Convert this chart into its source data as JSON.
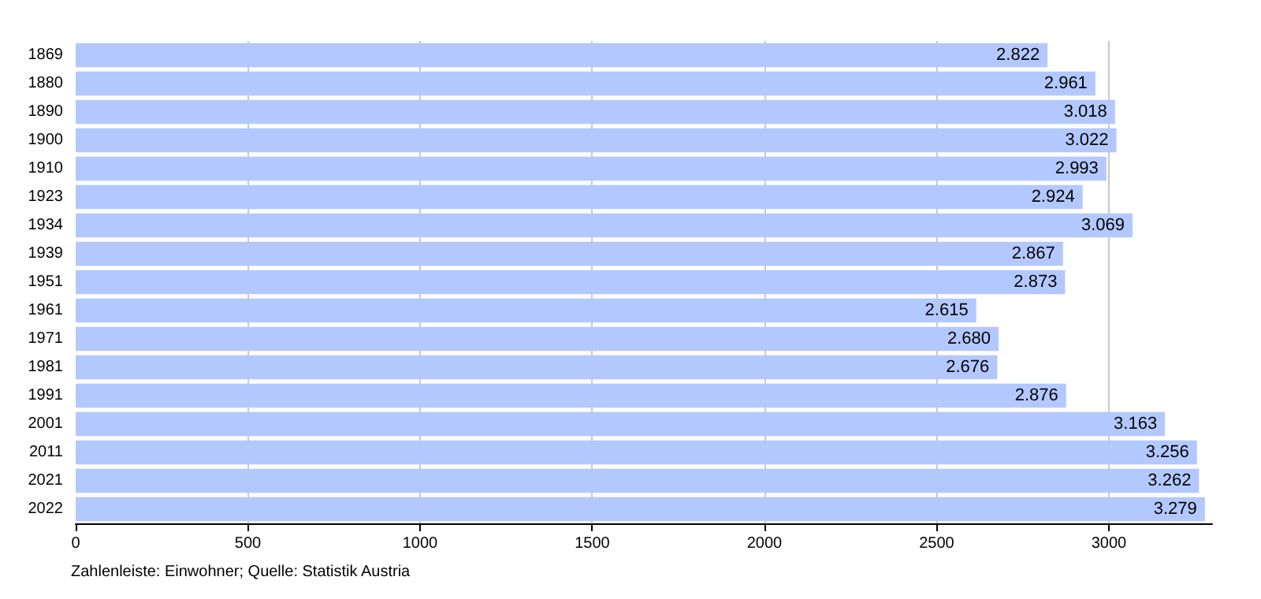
{
  "chart_data": {
    "type": "bar",
    "orientation": "horizontal",
    "categories": [
      "1869",
      "1880",
      "1890",
      "1900",
      "1910",
      "1923",
      "1934",
      "1939",
      "1951",
      "1961",
      "1971",
      "1981",
      "1991",
      "2001",
      "2011",
      "2021",
      "2022"
    ],
    "values": [
      2822,
      2961,
      3018,
      3022,
      2993,
      2924,
      3069,
      2867,
      2873,
      2615,
      2680,
      2676,
      2876,
      3163,
      3256,
      3262,
      3279
    ],
    "value_labels": [
      "2.822",
      "2.961",
      "3.018",
      "3.022",
      "2.993",
      "2.924",
      "3.069",
      "2.867",
      "2.873",
      "2.615",
      "2.680",
      "2.676",
      "2.876",
      "3.163",
      "3.256",
      "3.262",
      "3.279"
    ],
    "color": "#b3c8ff",
    "xlim": [
      0,
      3300
    ],
    "xticks": [
      0,
      500,
      1000,
      1500,
      2000,
      2500,
      3000
    ],
    "grid": "x",
    "annotations": [
      "Zahlenleiste: Einwohner; Quelle: Statistik Austria"
    ]
  }
}
